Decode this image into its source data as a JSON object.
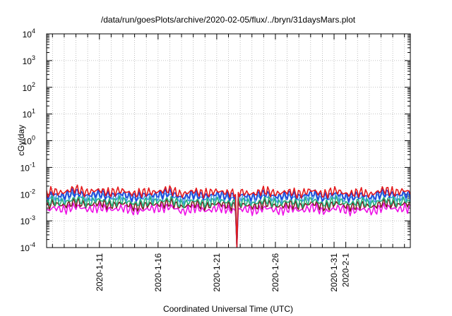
{
  "chart_data": {
    "type": "line",
    "title": "/data/run/goesPlots/archive/2020-02-05/flux/../bryn/31daysMars.plot",
    "xlabel": "Coordinated Universal Time (UTC)",
    "ylabel": "cGy/day",
    "yscale": "log",
    "ylim_exponents": [
      -4,
      4
    ],
    "y_ticks": [
      {
        "base": "10",
        "exp": "4"
      },
      {
        "base": "10",
        "exp": "3"
      },
      {
        "base": "10",
        "exp": "2"
      },
      {
        "base": "10",
        "exp": "1"
      },
      {
        "base": "10",
        "exp": "0"
      },
      {
        "base": "10",
        "exp": "-1"
      },
      {
        "base": "10",
        "exp": "-2"
      },
      {
        "base": "10",
        "exp": "-3"
      },
      {
        "base": "10",
        "exp": "-4"
      }
    ],
    "xlim": [
      "2020-01-06T12:00",
      "2020-02-06T12:00"
    ],
    "x_ticks": [
      {
        "date": "2020-01-11",
        "label": "2020-1-11"
      },
      {
        "date": "2020-01-16",
        "label": "2020-1-16"
      },
      {
        "date": "2020-01-21",
        "label": "2020-1-21"
      },
      {
        "date": "2020-01-26",
        "label": "2020-1-26"
      },
      {
        "date": "2020-01-31",
        "label": "2020-1-31"
      },
      {
        "date": "2020-02-01",
        "label": "2020-2-1"
      }
    ],
    "grid": true,
    "dropout": {
      "start": "2020-01-22T15:00",
      "end": "2020-01-22T19:00",
      "min": 0.0001
    },
    "x": [
      "2020-01-06T12:00",
      "2020-01-07T00:00",
      "2020-01-08T00:00",
      "2020-01-09T00:00",
      "2020-01-10T00:00",
      "2020-01-11T00:00",
      "2020-01-12T00:00",
      "2020-01-13T00:00",
      "2020-01-14T00:00",
      "2020-01-15T00:00",
      "2020-01-16T00:00",
      "2020-01-17T00:00",
      "2020-01-18T00:00",
      "2020-01-19T00:00",
      "2020-01-20T00:00",
      "2020-01-21T00:00",
      "2020-01-22T00:00",
      "2020-01-23T00:00",
      "2020-01-24T00:00",
      "2020-01-25T00:00",
      "2020-01-26T00:00",
      "2020-01-27T00:00",
      "2020-01-28T00:00",
      "2020-01-29T00:00",
      "2020-01-30T00:00",
      "2020-01-31T00:00",
      "2020-02-01T00:00",
      "2020-02-02T00:00",
      "2020-02-03T00:00",
      "2020-02-04T00:00",
      "2020-02-05T00:00",
      "2020-02-06T00:00",
      "2020-02-06T12:00"
    ],
    "series": [
      {
        "color": "#e41a1c",
        "values": [
          0.0095,
          0.012,
          0.013,
          0.014,
          0.013,
          0.0125,
          0.013,
          0.012,
          0.0115,
          0.0105,
          0.014,
          0.013,
          0.011,
          0.0115,
          0.012,
          0.0115,
          0.0125,
          0.0105,
          0.0115,
          0.012,
          0.012,
          0.011,
          0.0115,
          0.0125,
          0.011,
          0.012,
          0.0115,
          0.0105,
          0.011,
          0.0125,
          0.0135,
          0.0125,
          0.0105
        ]
      },
      {
        "color": "#1f3fdc",
        "values": [
          0.0075,
          0.0092,
          0.01,
          0.0105,
          0.01,
          0.0095,
          0.01,
          0.0093,
          0.0088,
          0.0082,
          0.011,
          0.01,
          0.0085,
          0.009,
          0.0093,
          0.009,
          0.0097,
          0.0082,
          0.009,
          0.0093,
          0.0093,
          0.0085,
          0.009,
          0.0097,
          0.0085,
          0.0093,
          0.009,
          0.0082,
          0.0085,
          0.0097,
          0.0105,
          0.0097,
          0.0082
        ]
      },
      {
        "color": "#3d9ae0",
        "values": [
          0.0062,
          0.0075,
          0.0082,
          0.0085,
          0.0082,
          0.0078,
          0.0082,
          0.0076,
          0.0072,
          0.0067,
          0.009,
          0.0082,
          0.007,
          0.0074,
          0.0076,
          0.0074,
          0.008,
          0.0067,
          0.0074,
          0.0076,
          0.0076,
          0.007,
          0.0074,
          0.008,
          0.007,
          0.0076,
          0.0074,
          0.0067,
          0.007,
          0.008,
          0.0085,
          0.008,
          0.0067
        ]
      },
      {
        "color": "#20b07a",
        "values": [
          0.0042,
          0.0052,
          0.0056,
          0.0058,
          0.0056,
          0.0054,
          0.0056,
          0.0052,
          0.005,
          0.0046,
          0.0062,
          0.0056,
          0.0048,
          0.0051,
          0.0052,
          0.0051,
          0.0055,
          0.0046,
          0.0051,
          0.0052,
          0.0052,
          0.0048,
          0.0051,
          0.0055,
          0.0048,
          0.0052,
          0.0051,
          0.0046,
          0.0048,
          0.0055,
          0.0058,
          0.0055,
          0.0046
        ]
      },
      {
        "color": "#7a2020",
        "values": [
          0.0032,
          0.004,
          0.0043,
          0.0045,
          0.0043,
          0.0041,
          0.0043,
          0.004,
          0.0038,
          0.0035,
          0.0047,
          0.0043,
          0.0037,
          0.0039,
          0.004,
          0.0039,
          0.0042,
          0.0035,
          0.0039,
          0.004,
          0.004,
          0.0037,
          0.0039,
          0.0042,
          0.0037,
          0.004,
          0.0039,
          0.0035,
          0.0037,
          0.0042,
          0.0045,
          0.0042,
          0.0035
        ]
      },
      {
        "color": "#ee10e6",
        "values": [
          0.0022,
          0.0027,
          0.003,
          0.0031,
          0.003,
          0.0028,
          0.003,
          0.0027,
          0.0026,
          0.0024,
          0.0033,
          0.003,
          0.0025,
          0.0027,
          0.0027,
          0.0027,
          0.0029,
          0.0024,
          0.0027,
          0.0027,
          0.0027,
          0.0025,
          0.0027,
          0.0029,
          0.0025,
          0.0027,
          0.0027,
          0.0024,
          0.0025,
          0.0029,
          0.0031,
          0.0029,
          0.0024
        ]
      }
    ]
  }
}
